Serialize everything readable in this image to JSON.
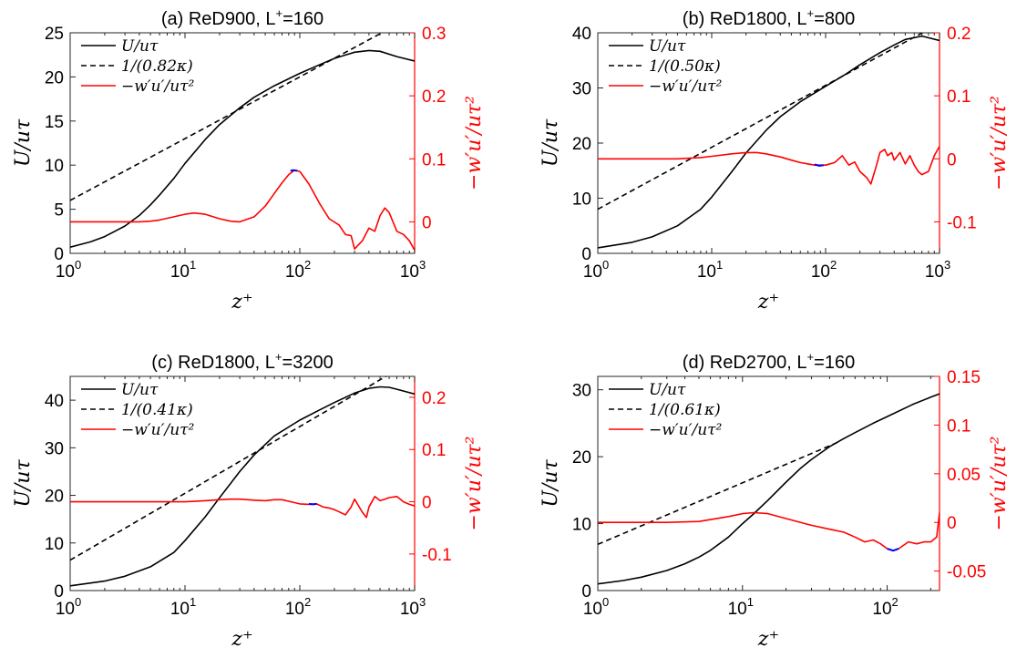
{
  "chart_data": [
    {
      "type": "line",
      "title_main": "(a) ReD900, L",
      "title_sup": "+",
      "title_tail": "=160",
      "x_scale": "log",
      "xlim": [
        1,
        1000
      ],
      "x_ticks": [
        {
          "v": 1,
          "m": "10",
          "e": "0"
        },
        {
          "v": 10,
          "m": "10",
          "e": "1"
        },
        {
          "v": 100,
          "m": "10",
          "e": "2"
        },
        {
          "v": 1000,
          "m": "10",
          "e": "3"
        }
      ],
      "ylim_left": [
        0,
        25
      ],
      "yticks_left": [
        "0",
        "5",
        "10",
        "15",
        "20",
        "25"
      ],
      "ylim_right": [
        -0.05,
        0.3
      ],
      "yticks_right": [
        "0",
        "0.1",
        "0.2",
        "0.3"
      ],
      "xlabel": "z⁺",
      "ylabel_left": "U/uτ",
      "ylabel_right": "−w′u′/uτ²",
      "legend": {
        "placement": "top-left",
        "entries": [
          "U/uτ",
          "1/(0.82κ)",
          "−w′u′/uτ²"
        ]
      },
      "series": [
        {
          "name": "U/uτ",
          "axis": "left",
          "color": "#000000",
          "dash": "",
          "x": [
            1,
            1.5,
            2,
            3,
            4,
            5,
            6,
            8,
            10,
            15,
            20,
            30,
            40,
            60,
            100,
            150,
            200,
            300,
            400,
            500,
            700,
            1000
          ],
          "y": [
            0.7,
            1.3,
            1.9,
            3.1,
            4.3,
            5.5,
            6.6,
            8.5,
            10.2,
            12.9,
            14.6,
            16.5,
            17.7,
            19.0,
            20.4,
            21.4,
            22.1,
            22.8,
            23.0,
            22.9,
            22.3,
            21.8
          ]
        },
        {
          "name": "1/(0.82κ)",
          "axis": "left",
          "color": "#000000",
          "dash": "6,4",
          "x": [
            1,
            630
          ],
          "y": [
            6.0,
            25.6
          ]
        },
        {
          "name": "−w′u′/uτ²",
          "axis": "right",
          "color": "#ff0000",
          "dash": "",
          "x": [
            1,
            2,
            3,
            4,
            5,
            6,
            8,
            10,
            12,
            15,
            20,
            25,
            30,
            40,
            50,
            60,
            70,
            80,
            90,
            100,
            120,
            150,
            180,
            220,
            250,
            280,
            300,
            350,
            400,
            450,
            500,
            550,
            600,
            700,
            800,
            900,
            1000
          ],
          "y": [
            0,
            0,
            0,
            0,
            0.001,
            0.003,
            0.008,
            0.012,
            0.014,
            0.012,
            0.005,
            0.001,
            0,
            0.008,
            0.025,
            0.045,
            0.062,
            0.075,
            0.082,
            0.08,
            0.06,
            0.028,
            0.005,
            -0.005,
            -0.02,
            -0.022,
            -0.043,
            -0.03,
            -0.01,
            -0.015,
            0.01,
            0.022,
            0.015,
            -0.015,
            -0.02,
            -0.03,
            -0.045
          ]
        },
        {
          "name": "",
          "axis": "right",
          "color": "#0000ff",
          "dash": "",
          "x": [
            83,
            88,
            95
          ],
          "y": [
            0.081,
            0.082,
            0.081
          ]
        }
      ]
    },
    {
      "type": "line",
      "title_main": "(b) ReD1800, L",
      "title_sup": "+",
      "title_tail": "=800",
      "x_scale": "log",
      "xlim": [
        1,
        1000
      ],
      "x_ticks": [
        {
          "v": 1,
          "m": "10",
          "e": "0"
        },
        {
          "v": 10,
          "m": "10",
          "e": "1"
        },
        {
          "v": 100,
          "m": "10",
          "e": "2"
        },
        {
          "v": 1000,
          "m": "10",
          "e": "3"
        }
      ],
      "ylim_left": [
        0,
        40
      ],
      "yticks_left": [
        "0",
        "10",
        "20",
        "30",
        "40"
      ],
      "ylim_right": [
        -0.15,
        0.2
      ],
      "yticks_right": [
        "-0.1",
        "0",
        "0.1",
        "0.2"
      ],
      "xlabel": "z⁺",
      "ylabel_left": "U/uτ",
      "ylabel_right": "−w′u′/uτ²",
      "legend": {
        "placement": "top-left",
        "entries": [
          "U/uτ",
          "1/(0.50κ)",
          "−w′u′/uτ²"
        ]
      },
      "series": [
        {
          "name": "U/uτ",
          "axis": "left",
          "color": "#000000",
          "dash": "",
          "x": [
            1,
            2,
            3,
            5,
            8,
            10,
            15,
            20,
            30,
            40,
            60,
            100,
            150,
            200,
            300,
            400,
            500,
            700,
            1000
          ],
          "y": [
            1.0,
            2.0,
            3.0,
            5.0,
            8.0,
            10.2,
            14.8,
            18.2,
            22.3,
            24.8,
            27.5,
            30.3,
            32.5,
            34.2,
            36.4,
            37.8,
            38.8,
            39.4,
            38.6
          ]
        },
        {
          "name": "1/(0.50κ)",
          "axis": "left",
          "color": "#000000",
          "dash": "6,4",
          "x": [
            1,
            1000
          ],
          "y": [
            8.0,
            41.7
          ]
        },
        {
          "name": "−w′u′/uτ²",
          "axis": "right",
          "color": "#ff0000",
          "dash": "",
          "x": [
            1,
            2,
            3,
            5,
            8,
            10,
            15,
            20,
            25,
            30,
            40,
            50,
            60,
            80,
            100,
            120,
            140,
            160,
            180,
            200,
            230,
            250,
            280,
            300,
            330,
            350,
            380,
            400,
            450,
            500,
            550,
            600,
            650,
            700,
            800,
            900,
            1000
          ],
          "y": [
            0,
            0,
            0,
            0,
            0.002,
            0.004,
            0.008,
            0.01,
            0.01,
            0.008,
            0.003,
            -0.002,
            -0.006,
            -0.01,
            -0.01,
            -0.006,
            0.005,
            -0.01,
            -0.005,
            -0.02,
            -0.03,
            -0.04,
            -0.01,
            0.01,
            0.015,
            0.005,
            0.01,
            -0.002,
            0.01,
            -0.008,
            0.005,
            -0.01,
            -0.02,
            -0.025,
            -0.02,
            0.005,
            0.02
          ]
        },
        {
          "name": "",
          "axis": "right",
          "color": "#0000ff",
          "dash": "",
          "x": [
            80,
            88,
            96
          ],
          "y": [
            -0.009,
            -0.011,
            -0.01
          ]
        }
      ]
    },
    {
      "type": "line",
      "title_main": "(c) ReD1800, L",
      "title_sup": "+",
      "title_tail": "=3200",
      "x_scale": "log",
      "xlim": [
        1,
        1000
      ],
      "x_ticks": [
        {
          "v": 1,
          "m": "10",
          "e": "0"
        },
        {
          "v": 10,
          "m": "10",
          "e": "1"
        },
        {
          "v": 100,
          "m": "10",
          "e": "2"
        },
        {
          "v": 1000,
          "m": "10",
          "e": "3"
        }
      ],
      "ylim_left": [
        0,
        45
      ],
      "yticks_left": [
        "0",
        "10",
        "20",
        "30",
        "40"
      ],
      "ylim_right": [
        -0.17,
        0.24
      ],
      "yticks_right": [
        "-0.1",
        "0",
        "0.1",
        "0.2"
      ],
      "xlabel": "z⁺",
      "ylabel_left": "U/uτ",
      "ylabel_right": "−w′u′/uτ²",
      "legend": {
        "placement": "top-left",
        "entries": [
          "U/uτ",
          "1/(0.41κ)",
          "−w′u′/uτ²"
        ]
      },
      "series": [
        {
          "name": "U/uτ",
          "axis": "left",
          "color": "#000000",
          "dash": "",
          "x": [
            1,
            2,
            3,
            5,
            8,
            10,
            15,
            20,
            30,
            40,
            60,
            100,
            150,
            200,
            300,
            400,
            500,
            600,
            700,
            1000
          ],
          "y": [
            1.0,
            2.0,
            3.0,
            5.0,
            8.0,
            10.5,
            15.5,
            19.5,
            25.0,
            28.5,
            32.5,
            35.8,
            38.0,
            39.5,
            41.5,
            42.5,
            42.8,
            42.7,
            42.3,
            41.3
          ]
        },
        {
          "name": "1/(0.41κ)",
          "axis": "left",
          "color": "#000000",
          "dash": "6,4",
          "x": [
            1,
            1000
          ],
          "y": [
            6.4,
            48.5
          ]
        },
        {
          "name": "−w′u′/uτ²",
          "axis": "right",
          "color": "#ff0000",
          "dash": "",
          "x": [
            1,
            2,
            5,
            10,
            15,
            20,
            25,
            30,
            40,
            50,
            60,
            70,
            80,
            100,
            120,
            140,
            160,
            180,
            200,
            250,
            280,
            300,
            350,
            380,
            400,
            450,
            500,
            550,
            600,
            700,
            800,
            900,
            1000
          ],
          "y": [
            0,
            0,
            0,
            0,
            0.002,
            0.004,
            0.005,
            0.005,
            0.003,
            0.002,
            0.004,
            0.004,
            0.001,
            -0.004,
            -0.005,
            -0.004,
            -0.01,
            -0.012,
            -0.015,
            -0.025,
            -0.01,
            0.005,
            -0.02,
            -0.03,
            -0.01,
            0.01,
            0.002,
            0.005,
            0.008,
            0.01,
            0.0,
            -0.005,
            -0.008
          ]
        },
        {
          "name": "",
          "axis": "right",
          "color": "#0000ff",
          "dash": "",
          "x": [
            120,
            130,
            140
          ],
          "y": [
            -0.004,
            -0.005,
            -0.004
          ]
        }
      ]
    },
    {
      "type": "line",
      "title_main": "(d) ReD2700, L",
      "title_sup": "+",
      "title_tail": "=160",
      "x_scale": "log",
      "xlim": [
        1,
        230
      ],
      "x_ticks": [
        {
          "v": 1,
          "m": "10",
          "e": "0"
        },
        {
          "v": 10,
          "m": "10",
          "e": "1"
        },
        {
          "v": 100,
          "m": "10",
          "e": "2"
        }
      ],
      "ylim_left": [
        0,
        32
      ],
      "yticks_left": [
        "0",
        "10",
        "20",
        "30"
      ],
      "ylim_right": [
        -0.07,
        0.15
      ],
      "yticks_right": [
        "-0.05",
        "0",
        "0.05",
        "0.1",
        "0.15"
      ],
      "xlabel": "z⁺",
      "ylabel_left": "U/uτ",
      "ylabel_right": "−w′u′/uτ²",
      "legend": {
        "placement": "top-left",
        "entries": [
          "U/uτ",
          "1/(0.61κ)",
          "−w′u′/uτ²"
        ]
      },
      "series": [
        {
          "name": "U/uτ",
          "axis": "left",
          "color": "#000000",
          "dash": "",
          "x": [
            1,
            1.5,
            2,
            3,
            4,
            5,
            6,
            8,
            10,
            12,
            15,
            20,
            25,
            30,
            40,
            50,
            60,
            80,
            100,
            150,
            200,
            230
          ],
          "y": [
            1.0,
            1.5,
            2.0,
            3.0,
            4.0,
            5.0,
            6.0,
            8.0,
            10.0,
            11.5,
            13.5,
            16.2,
            18.2,
            19.6,
            21.5,
            22.7,
            23.6,
            25.0,
            26.0,
            27.8,
            28.9,
            29.4
          ]
        },
        {
          "name": "1/(0.61κ)",
          "axis": "left",
          "color": "#000000",
          "dash": "6,4",
          "x": [
            1,
            45
          ],
          "y": [
            6.9,
            22.1
          ]
        },
        {
          "name": "−w′u′/uτ²",
          "axis": "right",
          "color": "#ff0000",
          "dash": "",
          "x": [
            1,
            2,
            3,
            5,
            8,
            10,
            12,
            15,
            20,
            30,
            40,
            50,
            60,
            70,
            80,
            90,
            100,
            110,
            120,
            140,
            160,
            180,
            200,
            220,
            230
          ],
          "y": [
            0,
            0,
            0,
            0.001,
            0.006,
            0.009,
            0.01,
            0.009,
            0.004,
            -0.003,
            -0.007,
            -0.01,
            -0.015,
            -0.02,
            -0.018,
            -0.022,
            -0.027,
            -0.029,
            -0.027,
            -0.02,
            -0.022,
            -0.02,
            -0.02,
            -0.015,
            0.01
          ]
        },
        {
          "name": "",
          "axis": "right",
          "color": "#0000ff",
          "dash": "",
          "x": [
            100,
            110,
            120
          ],
          "y": [
            -0.027,
            -0.029,
            -0.027
          ]
        }
      ]
    }
  ]
}
